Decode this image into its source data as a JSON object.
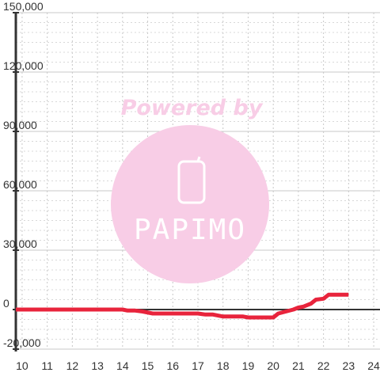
{
  "chart_data": {
    "type": "line",
    "title": "",
    "xlabel": "",
    "ylabel": "",
    "xlim": [
      9.75,
      24.25
    ],
    "ylim": [
      -20000,
      150000
    ],
    "x_ticks": [
      10,
      11,
      12,
      13,
      14,
      15,
      16,
      17,
      18,
      19,
      20,
      21,
      22,
      23,
      24
    ],
    "y_ticks": [
      -20000,
      0,
      30000,
      60000,
      90000,
      120000,
      150000
    ],
    "x_tick_labels": [
      "10",
      "11",
      "12",
      "13",
      "14",
      "15",
      "16",
      "17",
      "18",
      "19",
      "20",
      "21",
      "22",
      "23",
      "24"
    ],
    "y_tick_labels": [
      "-20,000",
      "0",
      "30,000",
      "60,000",
      "90,000",
      "120,000",
      "150,000"
    ],
    "grid": true,
    "legend": "none",
    "series": [
      {
        "color": "#e8243c",
        "x": [
          9.75,
          14.0,
          14.2,
          14.5,
          14.8,
          15.2,
          15.5,
          16.0,
          16.5,
          17.0,
          17.3,
          17.6,
          18.0,
          18.4,
          18.8,
          19.0,
          19.5,
          20.0,
          20.2,
          20.5,
          20.8,
          21.0,
          21.2,
          21.5,
          21.7,
          22.0,
          22.2,
          22.5,
          23.0
        ],
        "y": [
          0,
          0,
          -500,
          -500,
          -1000,
          -2000,
          -2000,
          -2000,
          -2000,
          -2000,
          -2500,
          -2500,
          -3500,
          -3500,
          -3500,
          -4000,
          -4000,
          -4000,
          -2000,
          -1000,
          0,
          1000,
          1500,
          3000,
          5000,
          5500,
          7500,
          7500,
          7500
        ]
      }
    ]
  },
  "watermark": {
    "text": "Powered by",
    "brand": "PAPIMO",
    "color": "#f8cde6"
  }
}
